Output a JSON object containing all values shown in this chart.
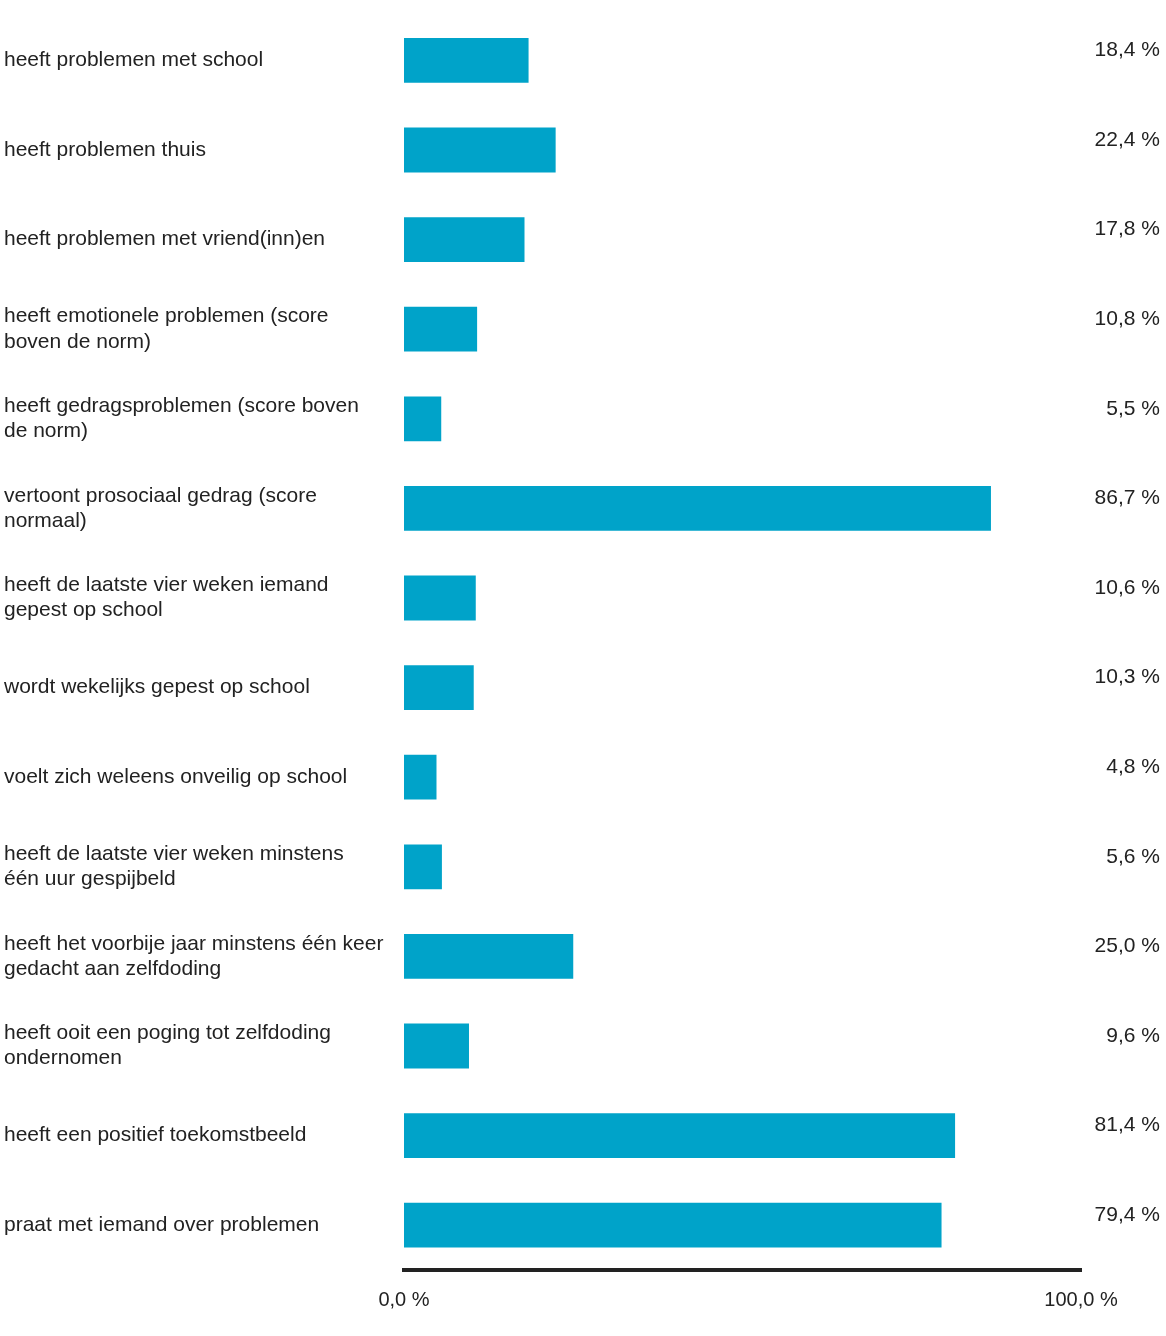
{
  "chart_data": {
    "type": "bar",
    "orientation": "horizontal",
    "categories": [
      "heeft problemen met school",
      "heeft problemen thuis",
      "heeft problemen met vriend(inn)en",
      "heeft emotionele problemen (score boven de norm)",
      "heeft gedragsproblemen (score boven de norm)",
      "vertoont prosociaal gedrag (score normaal)",
      "heeft de laatste vier weken iemand gepest op school",
      "wordt wekelijks gepest op school",
      "voelt zich weleens onveilig op school",
      "heeft de laatste vier weken minstens één uur gespijbeld",
      "heeft het voorbije jaar minstens één keer gedacht aan zelfdoding",
      "heeft ooit een poging tot zelfdoding ondernomen",
      "heeft een positief toekomstbeeld",
      "praat met iemand over problemen"
    ],
    "values": [
      18.4,
      22.4,
      17.8,
      10.8,
      5.5,
      86.7,
      10.6,
      10.3,
      4.8,
      5.6,
      25.0,
      9.6,
      81.4,
      79.4
    ],
    "value_labels": [
      "18,4 %",
      "22,4 %",
      "17,8 %",
      "10,8 %",
      "5,5 %",
      "86,7 %",
      "10,6 %",
      "10,3 %",
      "4,8 %",
      "5,6 %",
      "25,0 %",
      "9,6 %",
      "81,4 %",
      "79,4 %"
    ],
    "color": "#00a3c9",
    "xlim": [
      0,
      100
    ],
    "xticks": [
      {
        "value": 0,
        "label": "0,0 %"
      },
      {
        "value": 100,
        "label": "100,0 %"
      }
    ],
    "grid": false,
    "legend": false
  }
}
